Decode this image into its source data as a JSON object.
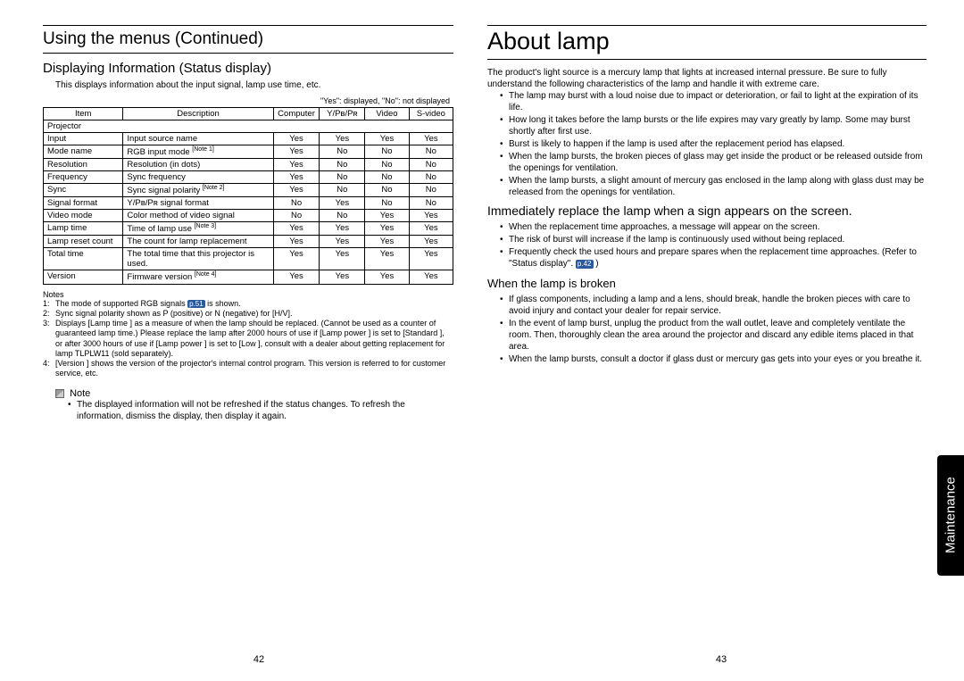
{
  "left": {
    "heading": "Using the menus (Continued)",
    "sub": "Displaying Information (Status display)",
    "intro": "This displays information about the input signal, lamp use time, etc.",
    "table_caption": "\"Yes\": displayed, \"No\": not displayed",
    "table": {
      "headers": [
        "Item",
        "Description",
        "Computer",
        "Y/Pʙ/Pʀ",
        "Video",
        "S-video"
      ],
      "rows": [
        [
          "Projector",
          "",
          "",
          "",
          "",
          ""
        ],
        [
          "Input",
          "Input source name",
          "Yes",
          "Yes",
          "Yes",
          "Yes"
        ],
        [
          "Mode name",
          "RGB input mode [Note 1]",
          "Yes",
          "No",
          "No",
          "No"
        ],
        [
          "Resolution",
          "Resolution (in dots)",
          "Yes",
          "No",
          "No",
          "No"
        ],
        [
          "Frequency",
          "Sync frequency",
          "Yes",
          "No",
          "No",
          "No"
        ],
        [
          "Sync",
          "Sync signal polarity [Note 2]",
          "Yes",
          "No",
          "No",
          "No"
        ],
        [
          "Signal format",
          "Y/Pʙ/Pʀ signal format",
          "No",
          "Yes",
          "No",
          "No"
        ],
        [
          "Video mode",
          "Color method of video signal",
          "No",
          "No",
          "Yes",
          "Yes"
        ],
        [
          "Lamp time",
          "Time of lamp use [Note 3]",
          "Yes",
          "Yes",
          "Yes",
          "Yes"
        ],
        [
          "Lamp reset count",
          "The count for lamp replacement",
          "Yes",
          "Yes",
          "Yes",
          "Yes"
        ],
        [
          "Total time",
          "The total time that this projector is used.",
          "Yes",
          "Yes",
          "Yes",
          "Yes"
        ],
        [
          "Version",
          "Firmware version [Note 4]",
          "Yes",
          "Yes",
          "Yes",
          "Yes"
        ]
      ]
    },
    "notes_label": "Notes",
    "notes": [
      {
        "num": "1:",
        "text_a": "The mode of supported RGB signals ",
        "ref": "p.51",
        "text_b": " is shown."
      },
      {
        "num": "2:",
        "text_a": "Sync signal polarity shown as P (positive) or N (negative) for [H/V].",
        "ref": "",
        "text_b": ""
      },
      {
        "num": "3:",
        "text_a": "Displays [Lamp time ] as a measure of when the lamp should be replaced. (Cannot be used as a counter of guaranteed lamp time.) Please replace the lamp after 2000 hours of use if [Lamp power ] is set to [Standard ], or after 3000 hours of use if [Lamp power ] is set to [Low ], consult with a dealer about getting replacement for lamp TLPLW11 (sold separately).",
        "ref": "",
        "text_b": ""
      },
      {
        "num": "4:",
        "text_a": "[Version ] shows the version of the projector's internal control program. This version is referred to for customer service, etc.",
        "ref": "",
        "text_b": ""
      }
    ],
    "note_icon_label": "Note",
    "note_bullet": "The displayed information will not be refreshed if the status changes. To refresh the information, dismiss the display, then display it again.",
    "pagenum": "42"
  },
  "right": {
    "heading": "About lamp",
    "intro": "The product's light source is a mercury lamp that lights at increased internal pressure. Be sure to fully understand the following characteristics of the lamp and handle it with extreme care.",
    "bullets1": [
      "The lamp may burst with a loud noise due to impact or deterioration, or fail to light at the expiration of its life.",
      "How long it takes before the lamp bursts or the life expires may vary greatly by lamp. Some may burst shortly after first use.",
      "Burst is likely to happen if the lamp is used after the replacement period has elapsed.",
      "When the lamp bursts, the broken pieces of glass may get inside the product or be released outside from the openings for ventilation.",
      "When the lamp bursts, a slight amount of mercury gas enclosed in the lamp along with glass dust may be released from the openings for ventilation."
    ],
    "sub1": "Immediately replace the lamp when a sign appears on the screen.",
    "bullets2": [
      "When the replacement time approaches, a message will appear on the screen.",
      "The risk of burst will increase if the lamp is continuously used without being replaced."
    ],
    "bullet2_last_a": "Frequently check the used hours and prepare spares when the replacement time approaches. (Refer to \"Status display\". ",
    "bullet2_last_ref": "p.42",
    "bullet2_last_b": " )",
    "sub2": "When the lamp is broken",
    "bullets3": [
      "If glass components, including a lamp and a lens, should break, handle the broken pieces with care to avoid injury and contact your dealer for repair service.",
      "In the event of lamp burst, unplug the product from the wall outlet, leave and completely ventilate the room. Then, thoroughly clean the area around the projector and discard any edible items placed in that area.",
      "When the lamp bursts, consult a doctor if glass dust or mercury gas gets into your eyes or you breathe it."
    ],
    "pagenum": "43",
    "tab": "Maintenance"
  }
}
